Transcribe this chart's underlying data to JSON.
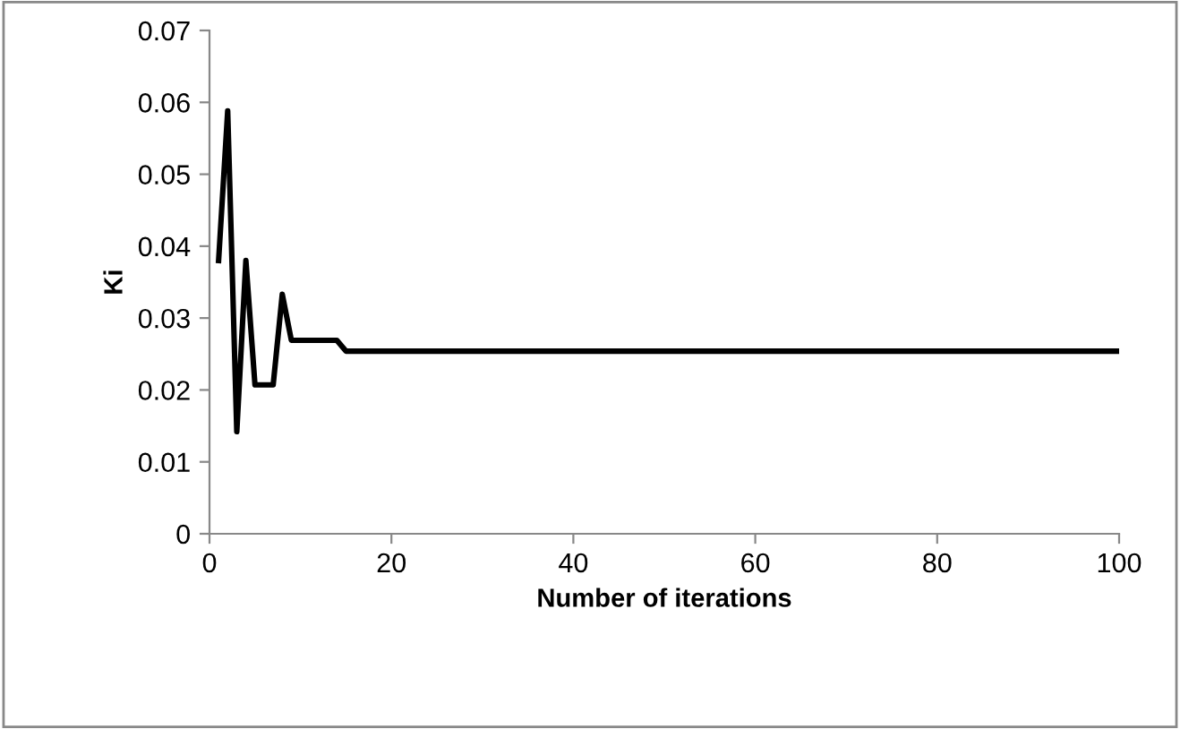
{
  "chart_data": {
    "type": "line",
    "xlabel": "Number of iterations",
    "ylabel": "Ki",
    "x": [
      1,
      2,
      3,
      4,
      5,
      6,
      7,
      8,
      9,
      10,
      11,
      12,
      13,
      14,
      15,
      20,
      40,
      60,
      80,
      100
    ],
    "series": [
      {
        "color": "#000000",
        "values": [
          0.038,
          0.0588,
          0.0142,
          0.038,
          0.0207,
          0.0207,
          0.0207,
          0.0333,
          0.0269,
          0.0269,
          0.0269,
          0.0269,
          0.0269,
          0.0269,
          0.0254,
          0.0254,
          0.0254,
          0.0254,
          0.0254,
          0.0254
        ]
      }
    ],
    "xlim": [
      0,
      100
    ],
    "xticks": [
      0,
      20,
      40,
      60,
      80,
      100
    ],
    "ylim": [
      0,
      0.07
    ],
    "yticks": [
      {
        "value": 0,
        "label": "0"
      },
      0.01,
      0.02,
      0.03,
      0.04,
      0.05,
      0.06,
      0.07
    ],
    "grid": false,
    "legend": false,
    "marker": "none",
    "line_style": "solid"
  }
}
